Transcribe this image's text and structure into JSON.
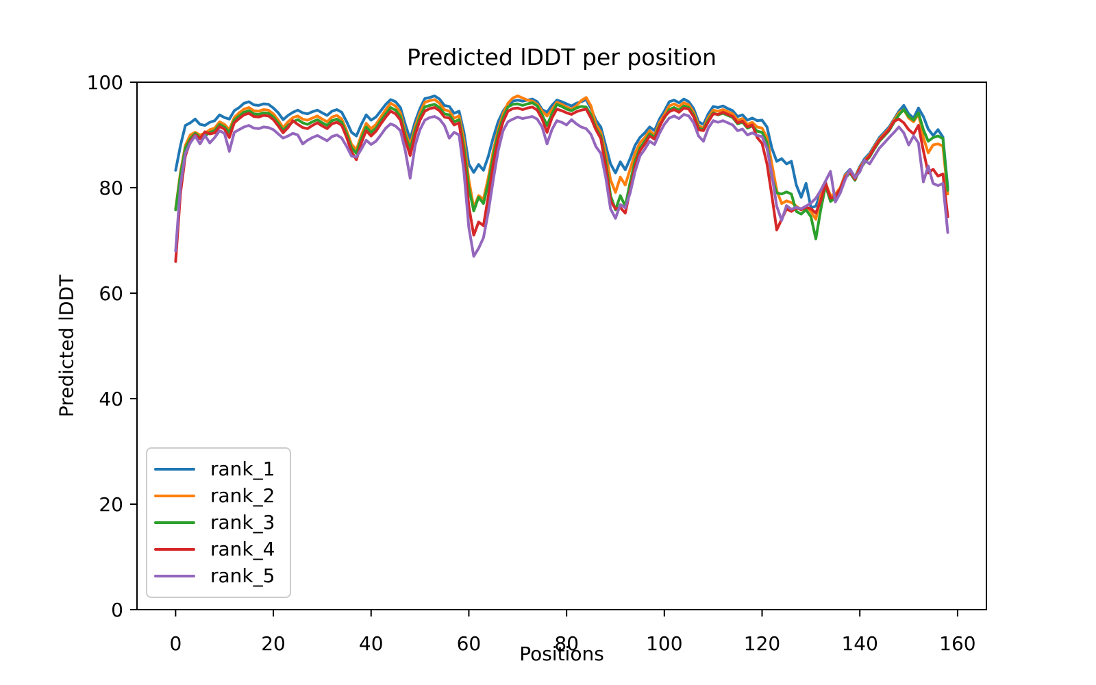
{
  "figure": {
    "title": "Predicted lDDT per position",
    "xlabel": "Positions",
    "ylabel": "Predicted lDDT",
    "background": "#ffffff",
    "spine_color": "#000000"
  },
  "legend": {
    "position": "lower left",
    "entries": [
      {
        "label": "rank_1",
        "color": "#1f77b4"
      },
      {
        "label": "rank_2",
        "color": "#ff7f0e"
      },
      {
        "label": "rank_3",
        "color": "#2ca02c"
      },
      {
        "label": "rank_4",
        "color": "#d62728"
      },
      {
        "label": "rank_5",
        "color": "#9467bd"
      }
    ]
  },
  "chart_data": {
    "type": "line",
    "title": "Predicted lDDT per position",
    "xlabel": "Positions",
    "ylabel": "Predicted lDDT",
    "xlim": [
      -7.9,
      165.9
    ],
    "ylim": [
      0,
      100
    ],
    "xticks": [
      0,
      20,
      40,
      60,
      80,
      100,
      120,
      140,
      160
    ],
    "yticks": [
      0,
      20,
      40,
      60,
      80,
      100
    ],
    "grid": false,
    "x_note": "x values are integer positions 0..158; index in each values array = position",
    "series": [
      {
        "name": "rank_1",
        "color": "#1f77b4",
        "values": [
          83.3,
          88.0,
          91.8,
          92.3,
          93.0,
          92.0,
          91.8,
          92.4,
          92.7,
          93.8,
          93.3,
          93.0,
          94.6,
          95.2,
          96.0,
          96.3,
          95.7,
          95.6,
          95.9,
          95.8,
          95.1,
          94.2,
          92.9,
          93.7,
          94.3,
          94.7,
          94.2,
          94.0,
          94.4,
          94.7,
          94.2,
          93.7,
          94.5,
          94.8,
          94.3,
          92.5,
          90.5,
          89.8,
          92.0,
          93.8,
          92.8,
          93.4,
          94.6,
          95.8,
          96.7,
          96.3,
          95.2,
          92.0,
          89.2,
          92.5,
          95.0,
          96.9,
          97.1,
          97.4,
          96.8,
          95.6,
          95.4,
          94.1,
          94.5,
          90.5,
          84.5,
          82.9,
          84.4,
          83.3,
          86.0,
          89.5,
          92.5,
          94.5,
          95.8,
          96.4,
          96.6,
          96.4,
          96.6,
          96.8,
          96.3,
          94.8,
          94.3,
          95.6,
          96.6,
          96.3,
          95.9,
          95.5,
          96.0,
          96.3,
          96.7,
          95.0,
          92.8,
          91.5,
          88.0,
          84.5,
          82.8,
          84.9,
          83.4,
          85.5,
          88.0,
          89.5,
          90.4,
          91.5,
          90.8,
          93.0,
          94.5,
          96.3,
          96.6,
          96.1,
          96.8,
          96.3,
          95.0,
          92.5,
          92.0,
          94.0,
          95.4,
          95.2,
          95.5,
          95.0,
          94.6,
          93.5,
          93.8,
          92.8,
          93.2,
          92.7,
          92.8,
          91.5,
          87.5,
          85.0,
          85.5,
          84.5,
          85.0,
          80.5,
          78.2,
          80.8,
          76.2,
          76.5,
          79.0,
          81.0,
          78.0,
          78.5,
          80.0,
          82.5,
          83.5,
          82.0,
          84.0,
          85.5,
          86.5,
          88.0,
          89.5,
          90.5,
          91.5,
          93.0,
          94.5,
          95.6,
          94.0,
          93.2,
          95.1,
          93.5,
          91.1,
          89.9,
          91.0,
          89.6,
          80.0
        ]
      },
      {
        "name": "rank_2",
        "color": "#ff7f0e",
        "values": [
          76.0,
          83.0,
          88.0,
          90.0,
          90.5,
          90.0,
          90.3,
          91.0,
          91.3,
          92.5,
          92.0,
          91.0,
          93.3,
          94.2,
          94.9,
          95.2,
          94.6,
          94.5,
          94.8,
          94.7,
          94.0,
          92.8,
          91.4,
          92.5,
          93.3,
          93.6,
          93.0,
          92.8,
          93.2,
          93.6,
          93.0,
          92.5,
          93.4,
          93.7,
          93.0,
          90.8,
          88.2,
          87.2,
          90.0,
          92.2,
          91.2,
          92.0,
          93.4,
          94.8,
          96.0,
          95.5,
          94.2,
          90.5,
          88.0,
          91.5,
          94.2,
          96.2,
          96.5,
          96.7,
          96.0,
          94.8,
          94.5,
          93.2,
          93.6,
          89.0,
          81.5,
          76.2,
          78.5,
          77.8,
          82.0,
          87.0,
          91.0,
          94.0,
          96.0,
          97.0,
          97.4,
          97.0,
          96.6,
          96.4,
          95.8,
          94.5,
          93.6,
          94.8,
          96.2,
          95.8,
          95.3,
          94.9,
          95.5,
          96.5,
          97.1,
          95.5,
          92.0,
          90.5,
          86.5,
          81.5,
          79.1,
          82.0,
          80.5,
          83.5,
          86.5,
          88.5,
          89.5,
          90.8,
          90.0,
          92.3,
          93.8,
          95.5,
          95.9,
          95.4,
          96.1,
          95.7,
          94.3,
          91.8,
          91.3,
          93.3,
          94.7,
          94.5,
          94.8,
          94.4,
          94.0,
          92.8,
          93.1,
          92.0,
          92.4,
          91.5,
          91.3,
          89.5,
          84.5,
          79.5,
          77.0,
          77.5,
          77.2,
          76.5,
          75.8,
          76.5,
          75.5,
          74.0,
          78.5,
          80.8,
          78.5,
          78.8,
          80.0,
          82.3,
          83.2,
          81.8,
          83.8,
          85.2,
          86.2,
          87.8,
          89.2,
          90.2,
          91.2,
          92.8,
          94.2,
          94.8,
          93.2,
          92.5,
          94.0,
          89.5,
          86.6,
          88.1,
          88.3,
          87.9,
          78.8
        ]
      },
      {
        "name": "rank_3",
        "color": "#2ca02c",
        "values": [
          75.8,
          82.5,
          87.5,
          89.3,
          90.3,
          89.5,
          89.8,
          90.5,
          90.8,
          92.0,
          91.5,
          90.5,
          92.8,
          93.6,
          94.3,
          94.6,
          94.0,
          93.9,
          94.2,
          94.1,
          93.4,
          92.2,
          90.9,
          91.8,
          92.5,
          92.9,
          92.3,
          92.0,
          92.5,
          92.9,
          92.3,
          91.8,
          92.7,
          93.0,
          92.4,
          90.2,
          87.6,
          86.5,
          89.3,
          91.5,
          90.5,
          91.3,
          92.7,
          94.0,
          95.2,
          94.7,
          93.5,
          89.8,
          87.3,
          90.8,
          93.5,
          95.3,
          95.6,
          95.8,
          95.2,
          94.0,
          93.8,
          92.5,
          92.9,
          87.5,
          80.0,
          75.6,
          78.2,
          77.0,
          81.0,
          86.0,
          90.3,
          93.3,
          95.3,
          95.8,
          95.9,
          95.6,
          95.9,
          96.1,
          95.5,
          93.8,
          91.8,
          94.0,
          95.8,
          95.4,
          94.9,
          94.6,
          95.1,
          95.4,
          95.3,
          93.8,
          91.3,
          89.8,
          85.0,
          78.5,
          75.8,
          78.5,
          76.5,
          81.0,
          85.0,
          87.5,
          88.8,
          90.2,
          89.5,
          91.8,
          93.2,
          94.8,
          95.2,
          94.7,
          95.5,
          95.2,
          93.8,
          91.3,
          91.0,
          92.8,
          94.2,
          93.8,
          94.1,
          93.7,
          93.3,
          92.1,
          92.4,
          91.3,
          91.7,
          90.7,
          90.5,
          88.5,
          82.0,
          79.0,
          78.8,
          79.2,
          78.8,
          75.5,
          75.0,
          75.8,
          74.5,
          70.3,
          75.8,
          80.4,
          77.4,
          78.0,
          79.5,
          81.8,
          82.8,
          81.4,
          83.4,
          84.8,
          85.8,
          87.4,
          88.8,
          89.8,
          90.8,
          92.4,
          93.8,
          94.8,
          93.5,
          92.8,
          94.2,
          91.0,
          88.8,
          89.5,
          89.8,
          89.3,
          79.5
        ]
      },
      {
        "name": "rank_4",
        "color": "#d62728",
        "values": [
          66.0,
          79.0,
          86.0,
          88.8,
          90.0,
          89.3,
          90.6,
          90.2,
          90.4,
          91.6,
          91.1,
          89.5,
          92.3,
          93.1,
          93.8,
          94.1,
          93.5,
          93.4,
          93.7,
          93.6,
          92.9,
          91.7,
          90.4,
          91.4,
          92.7,
          92.0,
          91.4,
          91.2,
          91.8,
          92.3,
          91.7,
          91.2,
          92.1,
          92.4,
          91.8,
          89.5,
          86.8,
          85.3,
          88.5,
          90.8,
          89.8,
          90.7,
          92.1,
          93.4,
          94.5,
          94.0,
          92.8,
          89.0,
          86.1,
          90.0,
          92.8,
          94.5,
          95.0,
          95.2,
          94.6,
          93.4,
          93.2,
          91.9,
          92.3,
          86.0,
          76.5,
          71.0,
          73.5,
          72.8,
          78.5,
          84.5,
          89.3,
          92.5,
          94.5,
          95.0,
          95.1,
          94.8,
          95.1,
          95.3,
          94.7,
          93.0,
          90.5,
          93.2,
          94.9,
          94.6,
          94.2,
          93.9,
          94.4,
          94.7,
          94.9,
          93.2,
          91.0,
          89.3,
          84.0,
          77.5,
          76.0,
          76.2,
          75.2,
          79.5,
          84.0,
          87.0,
          88.3,
          89.8,
          89.2,
          91.5,
          93.4,
          94.4,
          94.8,
          94.3,
          95.1,
          94.9,
          93.5,
          91.0,
          90.8,
          92.5,
          94.0,
          93.9,
          94.3,
          93.9,
          93.5,
          92.3,
          92.6,
          91.5,
          91.9,
          89.5,
          88.4,
          84.5,
          78.5,
          72.0,
          74.0,
          76.0,
          75.5,
          76.2,
          75.8,
          76.3,
          76.0,
          75.2,
          77.5,
          80.8,
          78.0,
          78.3,
          79.8,
          82.0,
          83.0,
          81.6,
          83.6,
          85.0,
          86.0,
          87.6,
          89.0,
          90.0,
          91.0,
          92.6,
          93.0,
          92.3,
          91.0,
          90.2,
          91.8,
          87.0,
          82.8,
          83.5,
          82.2,
          82.6,
          74.5
        ]
      },
      {
        "name": "rank_5",
        "color": "#9467bd",
        "values": [
          68.0,
          80.5,
          86.5,
          88.5,
          89.8,
          88.3,
          89.9,
          88.5,
          89.5,
          90.8,
          90.3,
          86.9,
          90.5,
          91.0,
          91.5,
          91.8,
          91.3,
          91.2,
          91.5,
          91.4,
          91.0,
          90.2,
          89.4,
          89.8,
          90.3,
          90.0,
          88.3,
          89.0,
          89.5,
          89.9,
          89.4,
          88.9,
          89.7,
          90.0,
          89.4,
          87.8,
          86.0,
          85.8,
          87.3,
          89.0,
          88.2,
          88.8,
          90.0,
          91.3,
          92.1,
          91.7,
          90.8,
          87.0,
          81.8,
          88.0,
          91.0,
          92.8,
          93.3,
          93.5,
          93.0,
          91.8,
          89.4,
          90.5,
          90.0,
          83.0,
          72.5,
          67.0,
          68.5,
          70.5,
          75.5,
          81.5,
          87.0,
          90.8,
          92.5,
          93.0,
          93.4,
          93.1,
          93.3,
          93.5,
          93.0,
          91.5,
          88.3,
          91.0,
          92.7,
          92.4,
          91.9,
          92.9,
          92.1,
          91.5,
          91.2,
          90.1,
          87.8,
          86.5,
          82.0,
          76.0,
          74.2,
          76.8,
          76.2,
          79.0,
          83.0,
          86.0,
          87.3,
          88.8,
          88.2,
          90.3,
          92.0,
          93.2,
          93.6,
          93.1,
          93.9,
          93.6,
          92.3,
          89.8,
          88.8,
          91.3,
          92.7,
          92.4,
          92.7,
          92.3,
          91.9,
          90.8,
          91.1,
          90.0,
          90.4,
          89.9,
          89.7,
          87.5,
          82.5,
          76.5,
          73.8,
          76.6,
          75.9,
          76.3,
          76.0,
          76.5,
          77.1,
          78.0,
          79.5,
          81.3,
          83.1,
          77.3,
          79.0,
          81.5,
          83.5,
          81.9,
          83.0,
          85.2,
          84.5,
          86.0,
          87.5,
          88.5,
          89.5,
          90.5,
          91.5,
          90.4,
          88.1,
          89.8,
          88.5,
          81.1,
          84.1,
          80.8,
          80.4,
          80.8,
          71.5
        ]
      }
    ]
  }
}
